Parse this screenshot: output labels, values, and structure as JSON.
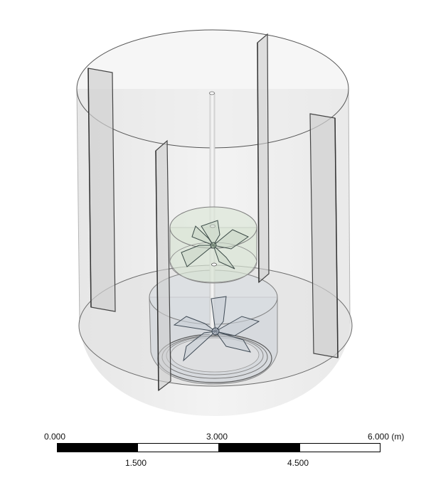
{
  "scale_bar": {
    "top_labels": [
      "0.000",
      "3.000",
      "6.000 (m)"
    ],
    "bottom_labels": [
      "1.500",
      "4.500"
    ],
    "segment_colors": [
      "#000000",
      "#ffffff",
      "#000000",
      "#ffffff"
    ]
  },
  "model": {
    "parts": [
      "tank-wall",
      "tank-bottom",
      "baffle",
      "shaft",
      "upper-impeller",
      "lower-impeller",
      "sparger-ring"
    ],
    "colors": {
      "wall_fill": "#e2e2e2",
      "edge": "#555555",
      "baffle_fill": "#cfcfcf",
      "upper_zone_fill": "#d9e4d6",
      "lower_zone_fill": "#d2d6db",
      "impeller_edge": "#3b4a46"
    }
  }
}
